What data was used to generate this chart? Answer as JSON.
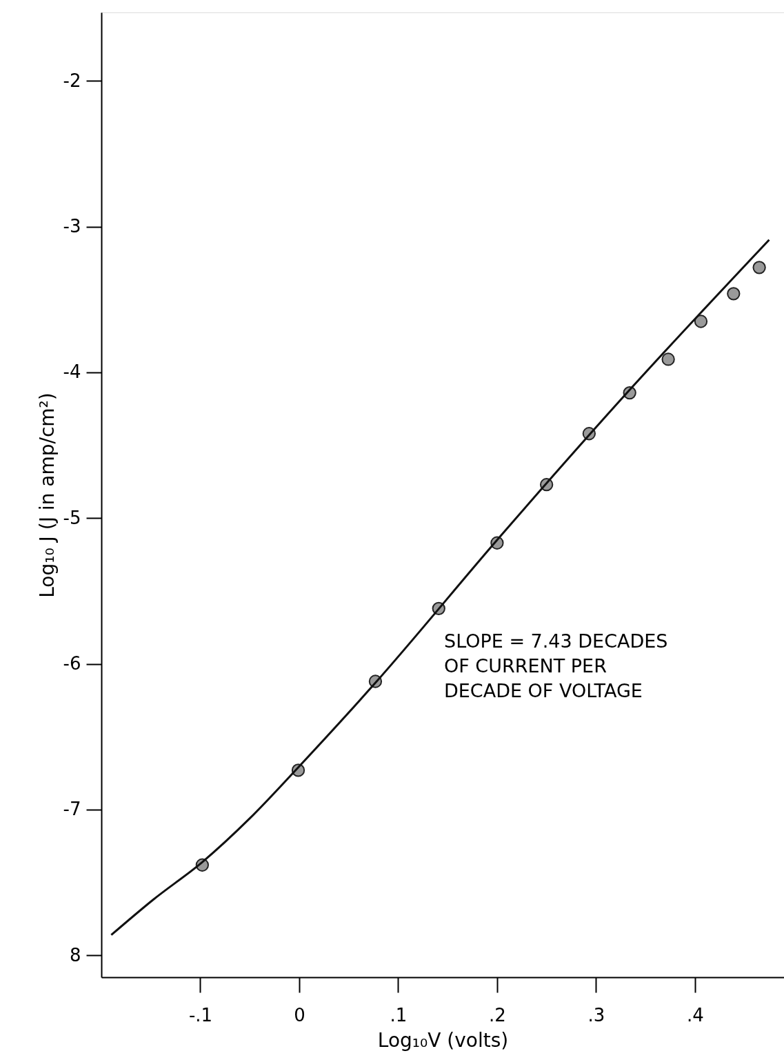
{
  "chart_data": {
    "type": "scatter",
    "xlabel": "Log₁₀V    (volts)",
    "ylabel": "Log₁₀ J    (J in amp/cm²)",
    "xlim": [
      -0.2,
      0.49
    ],
    "ylim": [
      -8.15,
      -1.53
    ],
    "xticks": [
      {
        "value": -0.1,
        "label": "-.1"
      },
      0,
      {
        "value": 0.1,
        "label": ".1"
      },
      {
        "value": 0.2,
        "label": ".2"
      },
      {
        "value": 0.3,
        "label": ".3"
      },
      {
        "value": 0.4,
        "label": ".4"
      }
    ],
    "yticks": [
      {
        "value": -8,
        "label": "8"
      },
      -7,
      -6,
      -5,
      -4,
      -3,
      -2
    ],
    "grid": false,
    "marker": "circle",
    "series": [
      {
        "color": "#9a9a9a",
        "x": [
          -0.098,
          -0.001,
          0.077,
          0.141,
          0.2,
          0.25,
          0.293,
          0.334,
          0.373,
          0.406,
          0.439,
          0.465
        ],
        "values": [
          -7.38,
          -6.73,
          -6.12,
          -5.62,
          -5.17,
          -4.77,
          -4.42,
          -4.14,
          -3.91,
          -3.65,
          -3.46,
          -3.28
        ]
      },
      {
        "type": "line",
        "color": "#111111",
        "line_style": "solid",
        "marker": "none",
        "x": [
          -0.19,
          -0.148,
          -0.098,
          -0.05,
          -0.001,
          0.077,
          0.2,
          0.334,
          0.475
        ],
        "values": [
          -7.86,
          -7.62,
          -7.36,
          -7.06,
          -6.71,
          -6.13,
          -5.15,
          -4.12,
          -3.09
        ]
      }
    ],
    "annotations": [
      "SLOPE = 7.43 DECADES\nOF CURRENT PER\nDECADE OF VOLTAGE"
    ]
  }
}
